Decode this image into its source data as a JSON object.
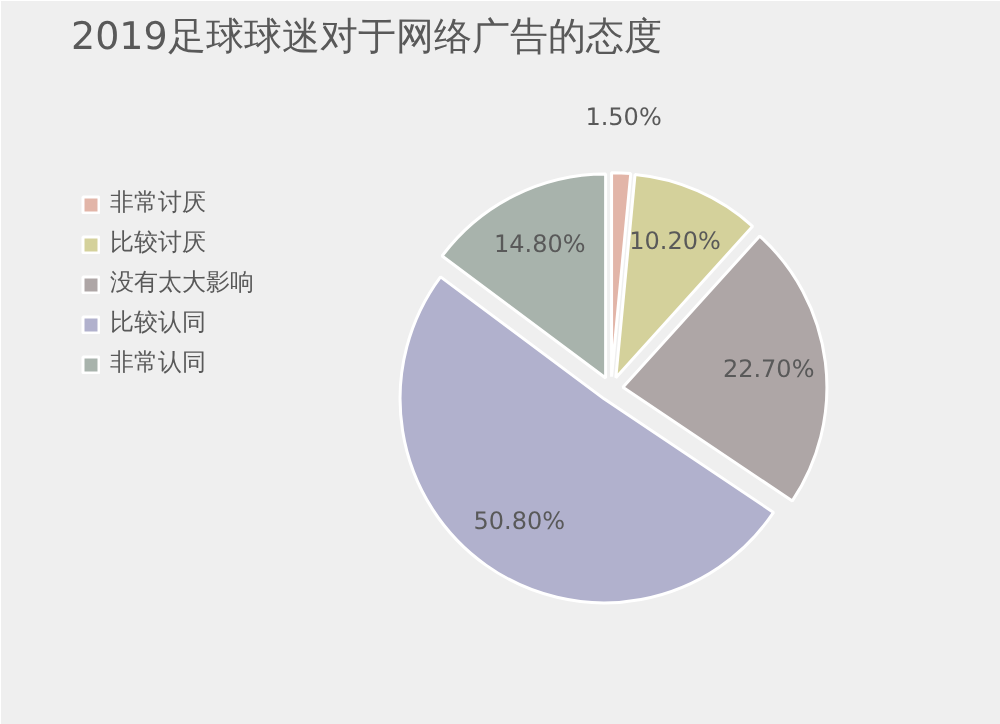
{
  "chart_data": {
    "type": "pie",
    "title": "2019足球球迷对于网络广告的态度",
    "categories": [
      "非常讨厌",
      "比较讨厌",
      "没有太大影响",
      "比较认同",
      "非常认同"
    ],
    "values": [
      1.5,
      10.2,
      22.7,
      50.8,
      14.8
    ],
    "colors": [
      "#e2b5a8",
      "#d4d19b",
      "#aea6a6",
      "#b1b1cd",
      "#a8b3ac"
    ],
    "value_labels": [
      "1.50%",
      "10.20%",
      "22.70%",
      "50.80%",
      "14.80%"
    ],
    "legend": "left"
  }
}
